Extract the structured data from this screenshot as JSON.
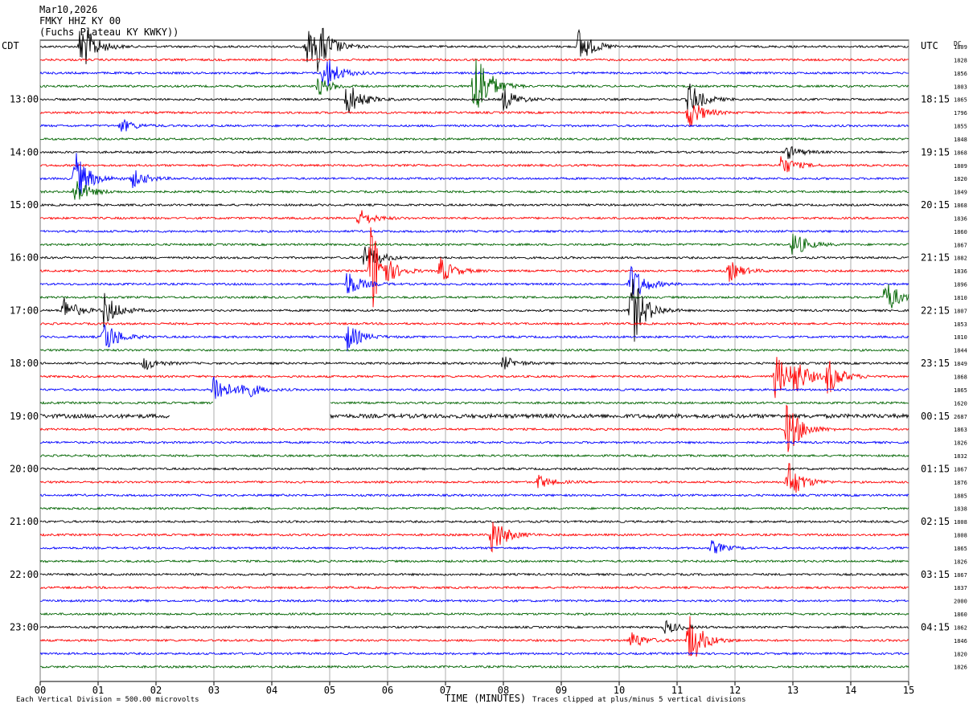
{
  "header": {
    "date": "Mar10,2026",
    "station": "FMKY HHZ KY 00",
    "network": "(Fuchs Plateau KY KWKY))"
  },
  "axis": {
    "left_tz": "CDT",
    "right_tz": "UTC",
    "dc_label": "DC",
    "xlabel": "TIME (MINUTES)"
  },
  "footer": {
    "scale": "Each Vertical Division =  500.00 microvolts",
    "clip": "Traces clipped at plus/minus 5 vertical divisions"
  },
  "colors": [
    "#000000",
    "#ff0000",
    "#0000ff",
    "#006400"
  ],
  "chart_data": {
    "type": "line",
    "xlim": [
      0,
      15
    ],
    "x_ticks": [
      "00",
      "01",
      "02",
      "03",
      "04",
      "05",
      "06",
      "07",
      "08",
      "09",
      "10",
      "11",
      "12",
      "13",
      "14",
      "15"
    ],
    "left_time_labels": [
      "13:00",
      "14:00",
      "15:00",
      "16:00",
      "17:00",
      "18:00",
      "19:00",
      "20:00",
      "21:00",
      "22:00",
      "23:00"
    ],
    "right_time_labels": [
      "18:15",
      "19:15",
      "20:15",
      "21:15",
      "22:15",
      "23:15",
      "00:15",
      "01:15",
      "02:15",
      "03:15",
      "04:15"
    ],
    "dc_values": [
      "1809",
      "1828",
      "1856",
      "1803",
      "1865",
      "1796",
      "1855",
      "1848",
      "1868",
      "1809",
      "1820",
      "1849",
      "1868",
      "1836",
      "1860",
      "1867",
      "1882",
      "1836",
      "1896",
      "1810",
      "1807",
      "1853",
      "1810",
      "1844",
      "1849",
      "1868",
      "1865",
      "1620",
      "2687",
      "1863",
      "1826",
      "1832",
      "1867",
      "1876",
      "1885",
      "1838",
      "1808",
      "1808",
      "1865",
      "1826",
      "1867",
      "1837",
      "2000",
      "1860",
      "1862",
      "1846",
      "1820",
      "1826"
    ],
    "gaps": [
      {
        "trace": 27,
        "from_min": 3.0,
        "to_min": 5.0
      },
      {
        "trace": 28,
        "from_min": 2.25,
        "to_min": 5.0
      }
    ],
    "events": [
      {
        "trace": 0,
        "min": 0.7,
        "amp": 2.5
      },
      {
        "trace": 0,
        "min": 4.6,
        "amp": 1.6
      },
      {
        "trace": 0,
        "min": 4.8,
        "amp": 1.8
      },
      {
        "trace": 0,
        "min": 9.3,
        "amp": 1.6
      },
      {
        "trace": 2,
        "min": 4.9,
        "amp": 1.8
      },
      {
        "trace": 3,
        "min": 7.5,
        "amp": 4.0
      },
      {
        "trace": 3,
        "min": 4.8,
        "amp": 0.8
      },
      {
        "trace": 4,
        "min": 5.3,
        "amp": 1.6
      },
      {
        "trace": 4,
        "min": 8.0,
        "amp": 1.0
      },
      {
        "trace": 4,
        "min": 11.2,
        "amp": 1.5
      },
      {
        "trace": 5,
        "min": 11.2,
        "amp": 1.4
      },
      {
        "trace": 6,
        "min": 1.4,
        "amp": 0.6
      },
      {
        "trace": 8,
        "min": 12.9,
        "amp": 0.6
      },
      {
        "trace": 9,
        "min": 12.8,
        "amp": 0.9
      },
      {
        "trace": 10,
        "min": 0.6,
        "amp": 2.4
      },
      {
        "trace": 10,
        "min": 1.6,
        "amp": 0.8
      },
      {
        "trace": 11,
        "min": 0.6,
        "amp": 1.2
      },
      {
        "trace": 13,
        "min": 5.5,
        "amp": 0.8
      },
      {
        "trace": 15,
        "min": 13.0,
        "amp": 1.2
      },
      {
        "trace": 16,
        "min": 5.6,
        "amp": 1.4
      },
      {
        "trace": 17,
        "min": 5.7,
        "amp": 4.5
      },
      {
        "trace": 17,
        "min": 6.9,
        "amp": 1.2
      },
      {
        "trace": 17,
        "min": 11.9,
        "amp": 0.9
      },
      {
        "trace": 18,
        "min": 5.3,
        "amp": 1.2
      },
      {
        "trace": 18,
        "min": 10.2,
        "amp": 1.8
      },
      {
        "trace": 19,
        "min": 14.6,
        "amp": 1.6
      },
      {
        "trace": 20,
        "min": 0.4,
        "amp": 1.2
      },
      {
        "trace": 20,
        "min": 1.1,
        "amp": 1.5
      },
      {
        "trace": 20,
        "min": 10.2,
        "amp": 3.5
      },
      {
        "trace": 22,
        "min": 1.1,
        "amp": 1.6
      },
      {
        "trace": 22,
        "min": 5.3,
        "amp": 1.2
      },
      {
        "trace": 24,
        "min": 1.8,
        "amp": 0.6
      },
      {
        "trace": 24,
        "min": 8.0,
        "amp": 0.6
      },
      {
        "trace": 25,
        "min": 12.7,
        "amp": 2.0
      },
      {
        "trace": 25,
        "min": 13.0,
        "amp": 1.6
      },
      {
        "trace": 25,
        "min": 13.6,
        "amp": 1.6
      },
      {
        "trace": 26,
        "min": 3.0,
        "amp": 1.6
      },
      {
        "trace": 26,
        "min": 3.5,
        "amp": 0.9
      },
      {
        "trace": 29,
        "min": 12.9,
        "amp": 2.5
      },
      {
        "trace": 33,
        "min": 12.9,
        "amp": 2.0
      },
      {
        "trace": 33,
        "min": 8.6,
        "amp": 0.6
      },
      {
        "trace": 37,
        "min": 7.8,
        "amp": 1.8
      },
      {
        "trace": 38,
        "min": 11.6,
        "amp": 0.6
      },
      {
        "trace": 45,
        "min": 11.2,
        "amp": 2.5
      },
      {
        "trace": 45,
        "min": 10.2,
        "amp": 0.8
      },
      {
        "trace": 44,
        "min": 10.8,
        "amp": 0.6
      }
    ]
  }
}
